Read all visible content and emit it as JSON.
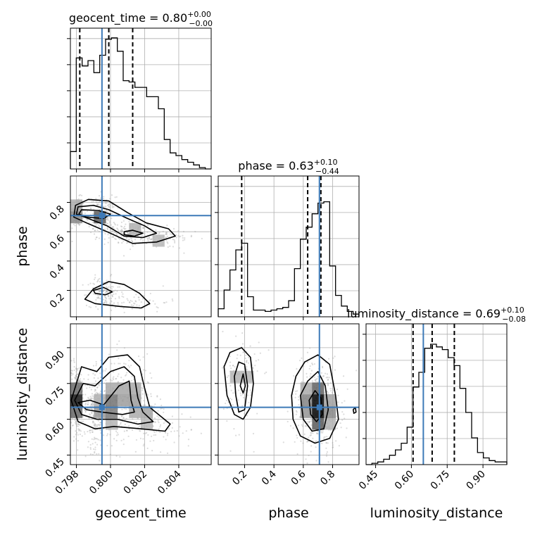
{
  "colors": {
    "truth": "#3d7ab8",
    "hist": "#000000",
    "grid": "#b0b0b0",
    "density": "#000000"
  },
  "chart_data": {
    "type": "corner",
    "parameters": [
      "geocent_time",
      "phase",
      "luminosity_distance"
    ],
    "truths": {
      "geocent_time": 0.7995,
      "phase": 0.71,
      "luminosity_distance": 0.65
    },
    "titles": [
      {
        "name": "geocent_time",
        "median": "0.80",
        "plus": "+0.00",
        "minus": "−0.00"
      },
      {
        "name": "phase",
        "median": "0.63",
        "plus": "+0.10",
        "minus": "−0.44"
      },
      {
        "name": "luminosity_distance",
        "median": "0.69",
        "plus": "+0.10",
        "minus": "−0.08"
      }
    ],
    "axes": {
      "geocent_time": {
        "lim": [
          0.79765,
          0.8059
        ],
        "ticks": [
          0.798,
          0.8,
          0.802,
          0.804
        ],
        "tick_labels": [
          "0.798",
          "0.800",
          "0.802",
          "0.804"
        ],
        "label": "geocent_time"
      },
      "phase": {
        "lim": [
          0.02,
          0.98
        ],
        "ticks": [
          0.2,
          0.4,
          0.6,
          0.8
        ],
        "tick_labels": [
          "0.2",
          "0.4",
          "0.6",
          "0.8"
        ],
        "label": "phase"
      },
      "luminosity_distance": {
        "lim": [
          0.41,
          1.0
        ],
        "ticks": [
          0.45,
          0.6,
          0.75,
          0.9
        ],
        "tick_labels": [
          "0.45",
          "0.60",
          "0.75",
          "0.90"
        ],
        "label": "luminosity_distance"
      }
    },
    "diagonal": [
      {
        "param": "geocent_time",
        "quantiles": [
          0.7982,
          0.7999,
          0.8013
        ],
        "counts": [
          0.13,
          0.83,
          0.77,
          0.81,
          0.72,
          0.85,
          0.97,
          0.98,
          0.88,
          0.66,
          0.65,
          0.61,
          0.61,
          0.54,
          0.54,
          0.45,
          0.22,
          0.12,
          0.1,
          0.07,
          0.05,
          0.03,
          0.01,
          0.0
        ]
      },
      {
        "param": "phase",
        "quantiles": [
          0.18,
          0.63,
          0.72
        ],
        "counts": [
          0.06,
          0.2,
          0.35,
          0.5,
          0.55,
          0.15,
          0.05,
          0.05,
          0.04,
          0.05,
          0.06,
          0.07,
          0.12,
          0.36,
          0.58,
          0.67,
          0.77,
          0.85,
          0.86,
          0.38,
          0.16,
          0.08,
          0.04,
          0.02
        ]
      },
      {
        "param": "luminosity_distance",
        "quantiles": [
          0.607,
          0.687,
          0.78
        ],
        "counts": [
          0.0,
          0.01,
          0.02,
          0.04,
          0.07,
          0.11,
          0.16,
          0.28,
          0.58,
          0.69,
          0.87,
          0.9,
          0.88,
          0.86,
          0.8,
          0.74,
          0.57,
          0.39,
          0.2,
          0.09,
          0.05,
          0.03,
          0.02,
          0.02
        ]
      }
    ],
    "pairs": [
      {
        "x": "geocent_time",
        "y": "phase",
        "modes": [
          [
            0.79805,
            0.735,
            0.00012,
            0.03,
            1.0
          ],
          [
            0.7995,
            0.71,
            0.00025,
            0.04,
            0.8
          ],
          [
            0.80115,
            0.59,
            0.00045,
            0.025,
            0.7
          ],
          [
            0.803,
            0.55,
            0.0006,
            0.02,
            0.3
          ],
          [
            0.7996,
            0.19,
            0.0003,
            0.03,
            0.5
          ],
          [
            0.8015,
            0.12,
            0.0006,
            0.02,
            0.25
          ]
        ],
        "contours": [
          [
            [
              0.79795,
              0.78
            ],
            [
              0.7987,
              0.82
            ],
            [
              0.7999,
              0.81
            ],
            [
              0.801,
              0.73
            ],
            [
              0.8021,
              0.66
            ],
            [
              0.8034,
              0.62
            ],
            [
              0.8038,
              0.57
            ],
            [
              0.8027,
              0.53
            ],
            [
              0.8013,
              0.52
            ],
            [
              0.7998,
              0.6
            ],
            [
              0.7986,
              0.66
            ],
            [
              0.79785,
              0.7
            ]
          ],
          [
            [
              0.7981,
              0.77
            ],
            [
              0.799,
              0.78
            ],
            [
              0.7999,
              0.75
            ],
            [
              0.801,
              0.69
            ],
            [
              0.802,
              0.64
            ],
            [
              0.8027,
              0.59
            ],
            [
              0.8019,
              0.56
            ],
            [
              0.8008,
              0.57
            ],
            [
              0.7998,
              0.64
            ],
            [
              0.7987,
              0.69
            ],
            [
              0.798,
              0.72
            ]
          ],
          [
            [
              0.7983,
              0.75
            ],
            [
              0.7993,
              0.745
            ],
            [
              0.8,
              0.72
            ],
            [
              0.7996,
              0.69
            ],
            [
              0.7986,
              0.7
            ],
            [
              0.79815,
              0.72
            ]
          ],
          [
            [
              0.8008,
              0.6
            ],
            [
              0.8013,
              0.61
            ],
            [
              0.8019,
              0.59
            ],
            [
              0.8014,
              0.57
            ],
            [
              0.8008,
              0.58
            ]
          ],
          [
            [
              0.7985,
              0.14
            ],
            [
              0.799,
              0.21
            ],
            [
              0.7999,
              0.26
            ],
            [
              0.8008,
              0.24
            ],
            [
              0.8017,
              0.18
            ],
            [
              0.8023,
              0.11
            ],
            [
              0.8018,
              0.08
            ],
            [
              0.8006,
              0.09
            ],
            [
              0.7991,
              0.11
            ]
          ],
          [
            [
              0.799,
              0.2
            ],
            [
              0.7996,
              0.22
            ],
            [
              0.8001,
              0.19
            ],
            [
              0.7997,
              0.17
            ],
            [
              0.7991,
              0.18
            ]
          ]
        ]
      },
      {
        "x": "geocent_time",
        "y": "luminosity_distance",
        "modes": [
          [
            0.798,
            0.68,
            0.00015,
            0.05,
            1.0
          ],
          [
            0.7991,
            0.64,
            0.0002,
            0.05,
            0.9
          ],
          [
            0.8001,
            0.66,
            0.0003,
            0.06,
            0.6
          ],
          [
            0.8011,
            0.7,
            0.0004,
            0.06,
            0.5
          ],
          [
            0.802,
            0.62,
            0.0004,
            0.04,
            0.35
          ],
          [
            0.8032,
            0.57,
            0.0006,
            0.03,
            0.2
          ]
        ],
        "contours": [
          [
            [
              0.7977,
              0.68
            ],
            [
              0.7983,
              0.82
            ],
            [
              0.7992,
              0.8
            ],
            [
              0.7999,
              0.86
            ],
            [
              0.801,
              0.87
            ],
            [
              0.8017,
              0.82
            ],
            [
              0.802,
              0.73
            ],
            [
              0.8023,
              0.65
            ],
            [
              0.8035,
              0.58
            ],
            [
              0.8032,
              0.55
            ],
            [
              0.8018,
              0.56
            ],
            [
              0.8002,
              0.57
            ],
            [
              0.7991,
              0.56
            ],
            [
              0.7981,
              0.59
            ]
          ],
          [
            [
              0.7979,
              0.68
            ],
            [
              0.7984,
              0.75
            ],
            [
              0.7991,
              0.74
            ],
            [
              0.8,
              0.8
            ],
            [
              0.8008,
              0.82
            ],
            [
              0.8014,
              0.78
            ],
            [
              0.8016,
              0.69
            ],
            [
              0.8019,
              0.63
            ],
            [
              0.8025,
              0.59
            ],
            [
              0.8016,
              0.58
            ],
            [
              0.8004,
              0.6
            ],
            [
              0.7992,
              0.6
            ],
            [
              0.7983,
              0.62
            ]
          ],
          [
            [
              0.7981,
              0.67
            ],
            [
              0.7988,
              0.68
            ],
            [
              0.7996,
              0.66
            ],
            [
              0.8005,
              0.74
            ],
            [
              0.8011,
              0.76
            ],
            [
              0.8012,
              0.68
            ],
            [
              0.8014,
              0.63
            ],
            [
              0.8007,
              0.62
            ],
            [
              0.7995,
              0.63
            ],
            [
              0.7986,
              0.64
            ]
          ]
        ]
      },
      {
        "x": "phase",
        "y": "luminosity_distance",
        "modes": [
          [
            0.18,
            0.76,
            0.04,
            0.07,
            0.45
          ],
          [
            0.68,
            0.67,
            0.05,
            0.06,
            1.0
          ],
          [
            0.73,
            0.63,
            0.04,
            0.05,
            0.8
          ]
        ],
        "contours": [
          [
            [
              0.06,
              0.82
            ],
            [
              0.1,
              0.88
            ],
            [
              0.18,
              0.9
            ],
            [
              0.24,
              0.86
            ],
            [
              0.26,
              0.75
            ],
            [
              0.24,
              0.65
            ],
            [
              0.19,
              0.6
            ],
            [
              0.13,
              0.62
            ],
            [
              0.08,
              0.7
            ]
          ],
          [
            [
              0.13,
              0.78
            ],
            [
              0.16,
              0.84
            ],
            [
              0.2,
              0.83
            ],
            [
              0.22,
              0.74
            ],
            [
              0.2,
              0.64
            ],
            [
              0.16,
              0.63
            ],
            [
              0.14,
              0.7
            ]
          ],
          [
            [
              0.17,
              0.74
            ],
            [
              0.19,
              0.79
            ],
            [
              0.205,
              0.74
            ],
            [
              0.19,
              0.71
            ]
          ],
          [
            [
              0.52,
              0.7
            ],
            [
              0.55,
              0.78
            ],
            [
              0.61,
              0.84
            ],
            [
              0.7,
              0.87
            ],
            [
              0.78,
              0.83
            ],
            [
              0.82,
              0.7
            ],
            [
              0.84,
              0.6
            ],
            [
              0.78,
              0.52
            ],
            [
              0.68,
              0.5
            ],
            [
              0.58,
              0.53
            ],
            [
              0.53,
              0.6
            ]
          ],
          [
            [
              0.58,
              0.7
            ],
            [
              0.63,
              0.76
            ],
            [
              0.7,
              0.8
            ],
            [
              0.75,
              0.74
            ],
            [
              0.77,
              0.64
            ],
            [
              0.74,
              0.56
            ],
            [
              0.66,
              0.55
            ],
            [
              0.6,
              0.6
            ]
          ],
          [
            [
              0.64,
              0.68
            ],
            [
              0.68,
              0.72
            ],
            [
              0.72,
              0.69
            ],
            [
              0.73,
              0.62
            ],
            [
              0.69,
              0.59
            ],
            [
              0.65,
              0.62
            ]
          ],
          [
            [
              0.94,
              0.64
            ],
            [
              0.955,
              0.65
            ],
            [
              0.96,
              0.63
            ],
            [
              0.945,
              0.625
            ]
          ]
        ]
      }
    ]
  }
}
